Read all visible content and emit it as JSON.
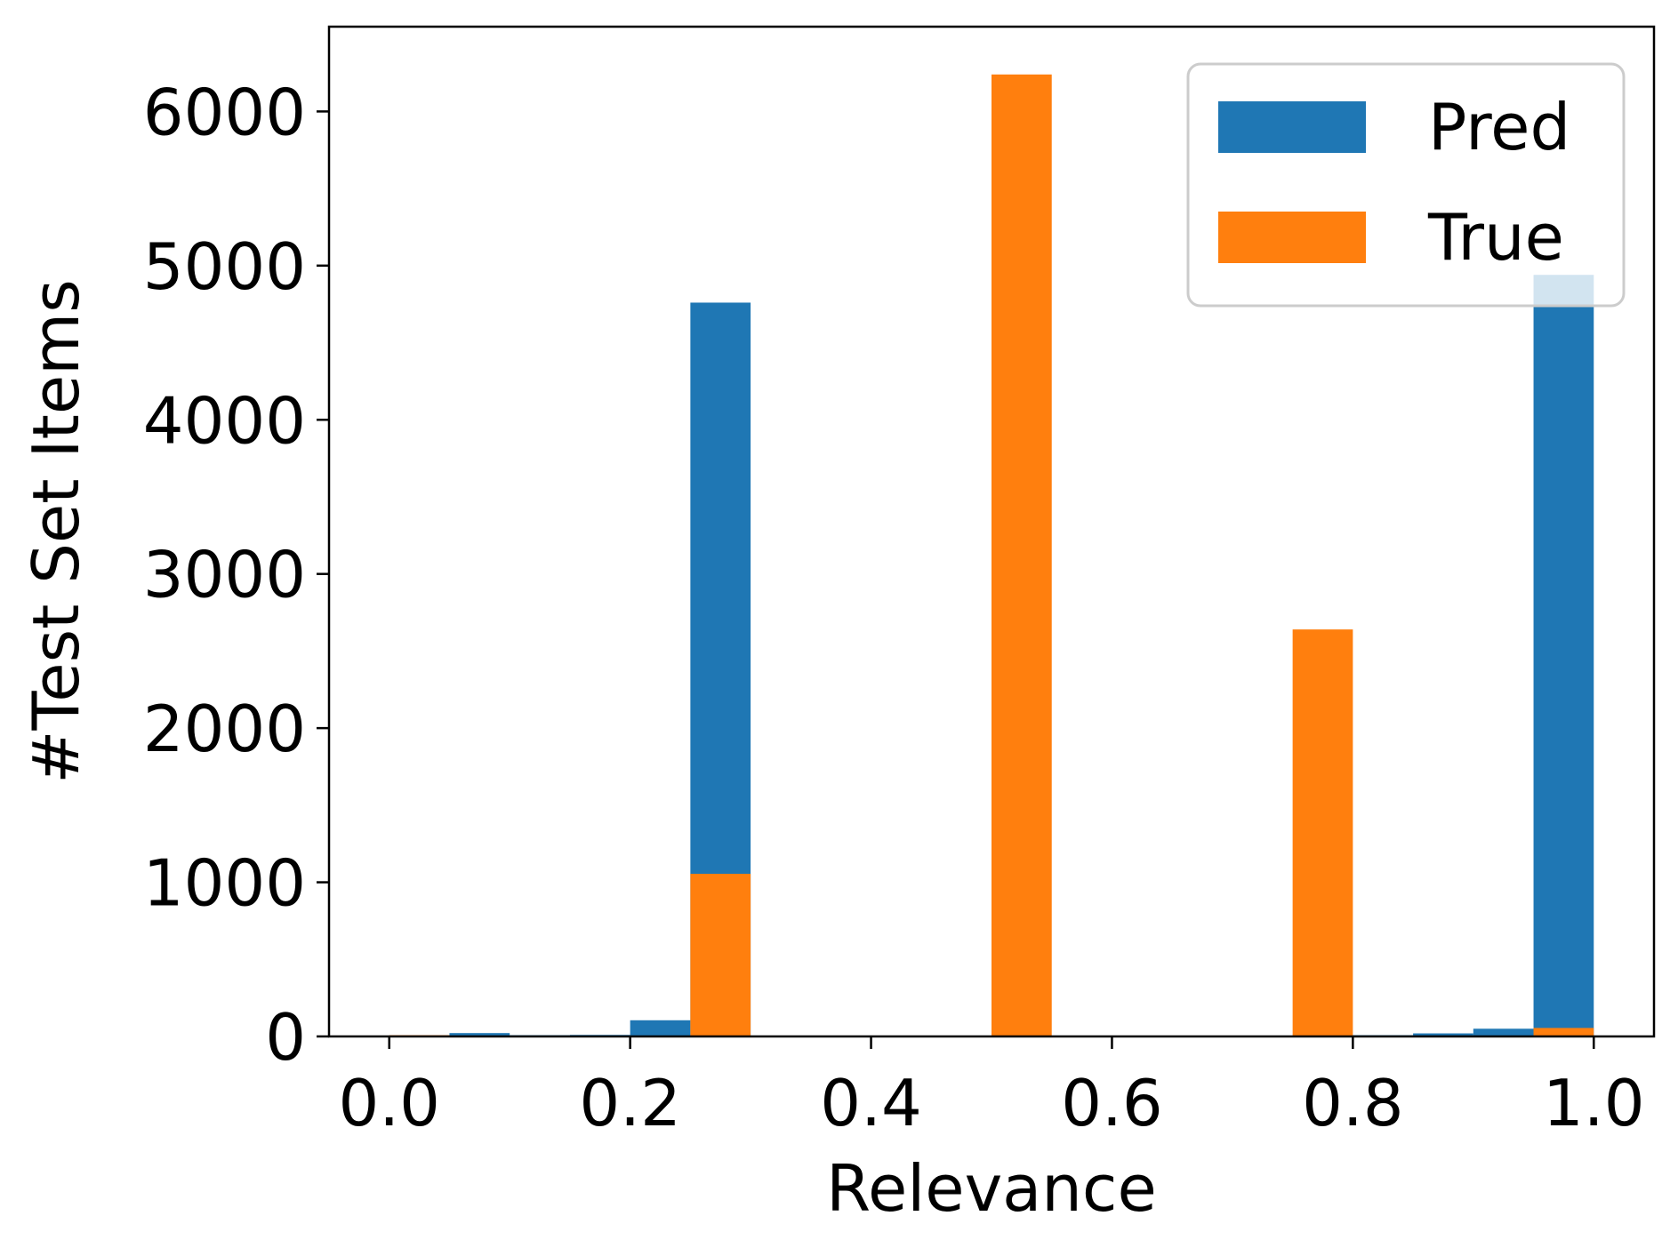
{
  "chart_data": {
    "type": "bar",
    "title": "",
    "xlabel": "Relevance",
    "ylabel": "#Test Set Items",
    "xlim": [
      -0.05,
      1.05
    ],
    "ylim": [
      0,
      6550
    ],
    "x_ticks": [
      {
        "value": 0.0,
        "label": "0.0"
      },
      {
        "value": 0.2,
        "label": "0.2"
      },
      {
        "value": 0.4,
        "label": "0.4"
      },
      {
        "value": 0.6,
        "label": "0.6"
      },
      {
        "value": 0.8,
        "label": "0.8"
      },
      {
        "value": 1.0,
        "label": "1.0"
      }
    ],
    "y_ticks": [
      {
        "value": 0,
        "label": "0"
      },
      {
        "value": 1000,
        "label": "1000"
      },
      {
        "value": 2000,
        "label": "2000"
      },
      {
        "value": 3000,
        "label": "3000"
      },
      {
        "value": 4000,
        "label": "4000"
      },
      {
        "value": 5000,
        "label": "5000"
      },
      {
        "value": 6000,
        "label": "6000"
      }
    ],
    "grid": false,
    "legend_position": "top-right",
    "series": [
      {
        "name": "Pred",
        "color": "#1f77b4",
        "bars": [
          {
            "x0": 0.0,
            "x1": 0.05,
            "value": 5
          },
          {
            "x0": 0.05,
            "x1": 0.1,
            "value": 22
          },
          {
            "x0": 0.1,
            "x1": 0.15,
            "value": 8
          },
          {
            "x0": 0.15,
            "x1": 0.2,
            "value": 10
          },
          {
            "x0": 0.2,
            "x1": 0.25,
            "value": 105
          },
          {
            "x0": 0.25,
            "x1": 0.3,
            "value": 4760
          },
          {
            "x0": 0.8,
            "x1": 0.85,
            "value": 8
          },
          {
            "x0": 0.85,
            "x1": 0.9,
            "value": 20
          },
          {
            "x0": 0.9,
            "x1": 0.95,
            "value": 50
          },
          {
            "x0": 0.95,
            "x1": 1.0,
            "value": 4940
          }
        ]
      },
      {
        "name": "True",
        "color": "#ff7f0e",
        "bars": [
          {
            "x0": 0.0,
            "x1": 0.05,
            "value": 8
          },
          {
            "x0": 0.25,
            "x1": 0.3,
            "value": 1055
          },
          {
            "x0": 0.5,
            "x1": 0.55,
            "value": 6240
          },
          {
            "x0": 0.75,
            "x1": 0.8,
            "value": 2640
          },
          {
            "x0": 0.95,
            "x1": 1.0,
            "value": 55
          }
        ]
      }
    ]
  }
}
